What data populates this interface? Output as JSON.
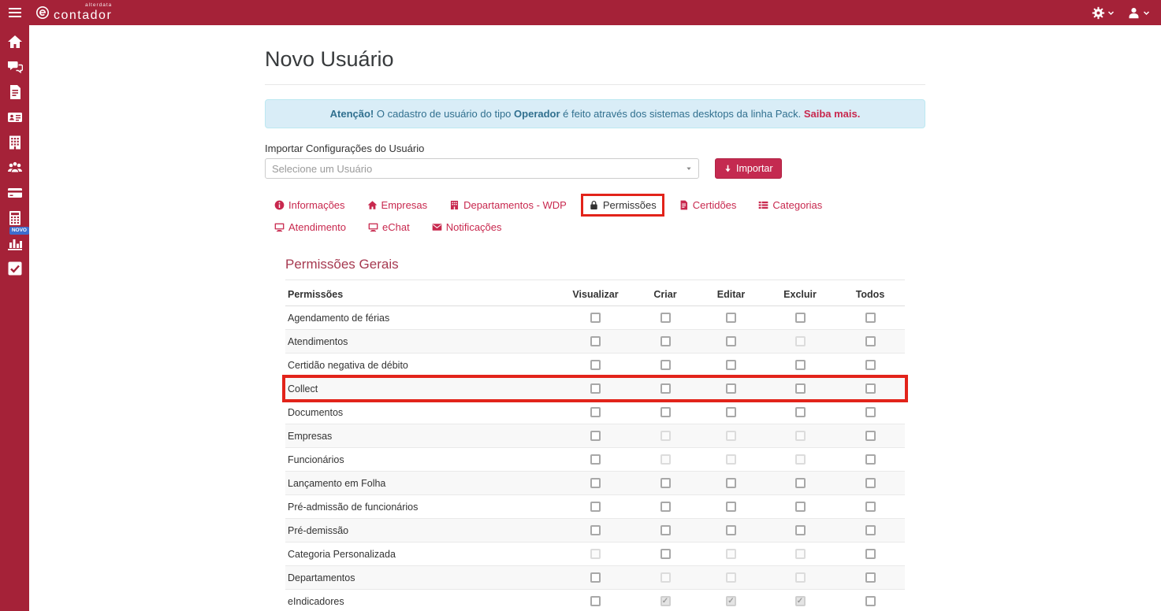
{
  "topbar": {
    "brand_small": "alterdata",
    "brand_name": "contador",
    "icons": [
      "hamburger-icon",
      "e-logo-icon",
      "gear-icon",
      "caret-down-icon",
      "user-icon"
    ]
  },
  "sidebar": {
    "items": [
      {
        "name": "home",
        "icon": "home-icon"
      },
      {
        "name": "chat",
        "icon": "chat-icon"
      },
      {
        "name": "documents",
        "icon": "document-icon"
      },
      {
        "name": "contacts",
        "icon": "id-card-icon"
      },
      {
        "name": "companies",
        "icon": "building-icon"
      },
      {
        "name": "users",
        "icon": "users-icon"
      },
      {
        "name": "billing",
        "icon": "credit-card-icon"
      },
      {
        "name": "calculator",
        "icon": "calculator-icon",
        "badge": "NOVO"
      },
      {
        "name": "reports",
        "icon": "bar-chart-icon"
      },
      {
        "name": "tasks",
        "icon": "check-square-icon"
      }
    ]
  },
  "page": {
    "title": "Novo Usuário"
  },
  "alert": {
    "bold1": "Atenção!",
    "text1": " O cadastro de usuário do tipo ",
    "bold2": "Operador",
    "text2": " é feito através dos sistemas desktops da linha Pack. ",
    "link": "Saiba mais."
  },
  "import": {
    "label": "Importar Configurações do Usuário",
    "select_placeholder": "Selecione um Usuário",
    "button_label": "Importar"
  },
  "tabs": [
    {
      "label": "Informações",
      "icon": "info",
      "active": false
    },
    {
      "label": "Empresas",
      "icon": "home",
      "active": false
    },
    {
      "label": "Departamentos - WDP",
      "icon": "building",
      "active": false
    },
    {
      "label": "Permissões",
      "icon": "lock",
      "active": true
    },
    {
      "label": "Certidões",
      "icon": "file",
      "active": false
    },
    {
      "label": "Categorias",
      "icon": "list",
      "active": false
    },
    {
      "label": "Atendimento",
      "icon": "desktop",
      "active": false
    },
    {
      "label": "eChat",
      "icon": "desktop",
      "active": false
    },
    {
      "label": "Notificações",
      "icon": "envelope",
      "active": false
    }
  ],
  "permissions": {
    "section_title": "Permissões Gerais",
    "headers": [
      "Permissões",
      "Visualizar",
      "Criar",
      "Editar",
      "Excluir",
      "Todos"
    ],
    "rows": [
      {
        "label": "Agendamento de férias",
        "cells": [
          "n",
          "n",
          "n",
          "n",
          "n"
        ],
        "highlight": false
      },
      {
        "label": "Atendimentos",
        "cells": [
          "n",
          "n",
          "n",
          "d",
          "n"
        ],
        "highlight": false
      },
      {
        "label": "Certidão negativa de débito",
        "cells": [
          "n",
          "n",
          "n",
          "n",
          "n"
        ],
        "highlight": false
      },
      {
        "label": "Collect",
        "cells": [
          "n",
          "n",
          "n",
          "n",
          "n"
        ],
        "highlight": true
      },
      {
        "label": "Documentos",
        "cells": [
          "n",
          "n",
          "n",
          "n",
          "n"
        ],
        "highlight": false
      },
      {
        "label": "Empresas",
        "cells": [
          "n",
          "d",
          "d",
          "d",
          "n"
        ],
        "highlight": false
      },
      {
        "label": "Funcionários",
        "cells": [
          "n",
          "d",
          "d",
          "d",
          "n"
        ],
        "highlight": false
      },
      {
        "label": "Lançamento em Folha",
        "cells": [
          "n",
          "n",
          "n",
          "n",
          "n"
        ],
        "highlight": false
      },
      {
        "label": "Pré-admissão de funcionários",
        "cells": [
          "n",
          "n",
          "n",
          "n",
          "n"
        ],
        "highlight": false
      },
      {
        "label": "Pré-demissão",
        "cells": [
          "n",
          "n",
          "n",
          "n",
          "n"
        ],
        "highlight": false
      },
      {
        "label": "Categoria Personalizada",
        "cells": [
          "d",
          "n",
          "d",
          "d",
          "n"
        ],
        "highlight": false
      },
      {
        "label": "Departamentos",
        "cells": [
          "n",
          "d",
          "d",
          "d",
          "n"
        ],
        "highlight": false
      },
      {
        "label": "eIndicadores",
        "cells": [
          "n",
          "dc",
          "dc",
          "dc",
          "n"
        ],
        "highlight": false
      }
    ],
    "cell_state_legend": {
      "n": "unchecked",
      "d": "disabled-unchecked",
      "dc": "disabled-checked"
    }
  },
  "colors": {
    "topbar_red": "#A52238",
    "button_red": "#C42A50",
    "link_red": "#C8284E",
    "annotation_red": "#E2231A",
    "section_heading": "#A63950",
    "alert_bg": "#D9EDF7",
    "alert_text": "#31708F",
    "badge_blue": "#3D6DCC"
  }
}
